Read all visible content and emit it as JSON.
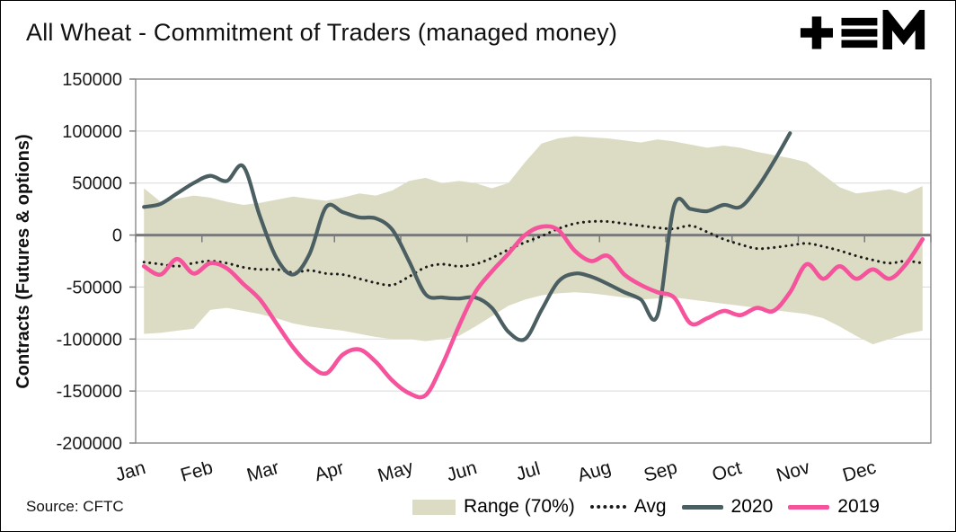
{
  "header": {
    "title": "All Wheat - Commitment of Traders (managed money)"
  },
  "source": "Source: CFTC",
  "chart_data": {
    "type": "line",
    "title": "All Wheat - Commitment of Traders (managed money)",
    "ylabel": "Contracts (Futures & options)",
    "ylim": [
      -200000,
      150000
    ],
    "yticks": [
      150000,
      100000,
      50000,
      0,
      -50000,
      -100000,
      -150000,
      -200000
    ],
    "categories": [
      "Jan",
      "Feb",
      "Mar",
      "Apr",
      "May",
      "Jun",
      "Jul",
      "Aug",
      "Sep",
      "Oct",
      "Nov",
      "Dec"
    ],
    "points_per_month": 4,
    "grid": true,
    "legend_position": "bottom",
    "band": {
      "name": "Range (70%)",
      "color": "#dcdcc4",
      "upper": [
        45000,
        32000,
        35000,
        38000,
        36000,
        32000,
        29000,
        31000,
        34000,
        37000,
        35000,
        33000,
        36000,
        40000,
        38000,
        43000,
        52000,
        55000,
        50000,
        52000,
        50000,
        45000,
        50000,
        70000,
        88000,
        93000,
        95000,
        94000,
        93000,
        91000,
        89000,
        92000,
        90000,
        87000,
        84000,
        86000,
        84000,
        80000,
        77000,
        74000,
        70000,
        58000,
        46000,
        40000,
        42000,
        44000,
        40000,
        47000
      ],
      "lower": [
        -95000,
        -94000,
        -92000,
        -90000,
        -72000,
        -70000,
        -73000,
        -76000,
        -80000,
        -85000,
        -88000,
        -90000,
        -92000,
        -95000,
        -98000,
        -100000,
        -100000,
        -102000,
        -100000,
        -97000,
        -88000,
        -78000,
        -68000,
        -62000,
        -58000,
        -56000,
        -55000,
        -56000,
        -58000,
        -60000,
        -62000,
        -61000,
        -60000,
        -62000,
        -64000,
        -66000,
        -68000,
        -70000,
        -72000,
        -74000,
        -76000,
        -80000,
        -88000,
        -97000,
        -105000,
        -100000,
        -95000,
        -92000
      ]
    },
    "series": [
      {
        "name": "Avg",
        "color": "#1a1a1a",
        "style": "dotted",
        "width": 3,
        "values": [
          -26000,
          -28000,
          -30000,
          -27000,
          -25000,
          -27000,
          -31000,
          -33000,
          -33000,
          -36000,
          -34000,
          -37000,
          -38000,
          -42000,
          -46000,
          -48000,
          -40000,
          -31000,
          -28000,
          -30000,
          -28000,
          -22000,
          -14000,
          -7000,
          -1000,
          6000,
          11000,
          13000,
          13000,
          11000,
          9000,
          7000,
          6000,
          9000,
          3000,
          -4000,
          -9000,
          -13000,
          -12000,
          -10000,
          -8000,
          -11000,
          -15000,
          -20000,
          -24000,
          -27000,
          -25000,
          -27000
        ]
      },
      {
        "name": "2020",
        "color": "#4b5f63",
        "style": "solid",
        "width": 4.2,
        "values": [
          27000,
          30000,
          40000,
          50000,
          57000,
          52000,
          66000,
          18000,
          -22000,
          -38000,
          -18000,
          27000,
          22000,
          17000,
          16000,
          5000,
          -25000,
          -57000,
          -60000,
          -61000,
          -60000,
          -70000,
          -93000,
          -100000,
          -72000,
          -45000,
          -37000,
          -40000,
          -47000,
          -55000,
          -62000,
          -77000,
          28000,
          25000,
          23000,
          29000,
          27000,
          45000,
          70000,
          98000
        ]
      },
      {
        "name": "2019",
        "color": "#f5539b",
        "style": "solid",
        "width": 4.6,
        "values": [
          -30000,
          -38000,
          -23000,
          -37000,
          -27000,
          -32000,
          -47000,
          -62000,
          -85000,
          -108000,
          -125000,
          -133000,
          -115000,
          -110000,
          -122000,
          -140000,
          -152000,
          -154000,
          -125000,
          -88000,
          -55000,
          -35000,
          -18000,
          0,
          8000,
          5000,
          -15000,
          -25000,
          -20000,
          -38000,
          -48000,
          -55000,
          -60000,
          -85000,
          -80000,
          -73000,
          -77000,
          -70000,
          -73000,
          -55000,
          -28000,
          -42000,
          -30000,
          -42000,
          -33000,
          -42000,
          -28000,
          -4000
        ]
      }
    ]
  }
}
